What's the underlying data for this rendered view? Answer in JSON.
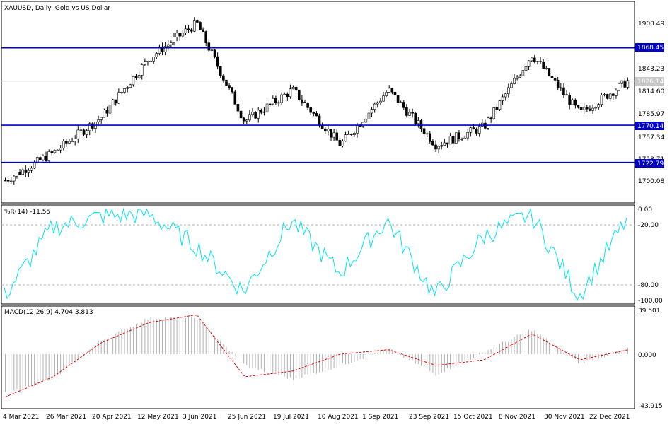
{
  "main_chart": {
    "title": "XAUUSD, Daily:  Gold vs US Dollar",
    "price_axis_ticks": [
      "1900.49",
      "1843.23",
      "1814.60",
      "1785.97",
      "1757.34",
      "1728.71",
      "1700.08"
    ],
    "current_price_label": "1826.14",
    "current_price": 1826.14,
    "levels": [
      {
        "label": "1868.45",
        "value": 1868.45
      },
      {
        "label": "1770.14",
        "value": 1770.14
      },
      {
        "label": "1722.79",
        "value": 1722.79
      }
    ]
  },
  "wpr_panel": {
    "title": "%R(14) -11.55",
    "axis_ticks": [
      "0.00",
      "-20.00",
      "-80.00",
      "-100.00"
    ]
  },
  "macd_panel": {
    "title": "MACD(12,26,9) 4.704 3.813",
    "axis_ticks": [
      "39.501",
      "0.000",
      "-43.915"
    ]
  },
  "date_axis": [
    "4 Mar 2021",
    "26 Mar 2021",
    "20 Apr 2021",
    "12 May 2021",
    "3 Jun 2021",
    "25 Jun 2021",
    "19 Jul 2021",
    "10 Aug 2021",
    "1 Sep 2021",
    "23 Sep 2021",
    "15 Oct 2021",
    "8 Nov 2021",
    "30 Nov 2021",
    "22 Dec 2021"
  ],
  "colors": {
    "candle": "#000000",
    "level_line": "#0000cc",
    "level_label_bg": "#0000cc",
    "wpr_line": "#00e5ee",
    "macd_hist": "#b0b0b0",
    "macd_signal": "#e00000"
  },
  "chart_data": [
    {
      "type": "candlestick",
      "title": "XAUUSD, Daily:  Gold vs US Dollar",
      "ylim": [
        1685,
        1922
      ],
      "x": [
        "4 Mar 2021",
        "26 Mar 2021",
        "20 Apr 2021",
        "12 May 2021",
        "3 Jun 2021",
        "25 Jun 2021",
        "19 Jul 2021",
        "10 Aug 2021",
        "1 Sep 2021",
        "23 Sep 2021",
        "15 Oct 2021",
        "8 Nov 2021",
        "30 Nov 2021",
        "22 Dec 2021"
      ],
      "approx_close": [
        1700,
        1735,
        1780,
        1855,
        1900,
        1775,
        1815,
        1745,
        1815,
        1745,
        1768,
        1860,
        1785,
        1826
      ],
      "horizontal_levels": [
        1868.45,
        1770.14,
        1722.79
      ],
      "last_price": 1826.14
    },
    {
      "type": "line",
      "title": "%R(14) -11.55",
      "ylim": [
        -100,
        0
      ],
      "x": [
        "4 Mar 2021",
        "26 Mar 2021",
        "20 Apr 2021",
        "12 May 2021",
        "3 Jun 2021",
        "25 Jun 2021",
        "19 Jul 2021",
        "10 Aug 2021",
        "1 Sep 2021",
        "23 Sep 2021",
        "15 Oct 2021",
        "8 Nov 2021",
        "30 Nov 2021",
        "22 Dec 2021"
      ],
      "values": [
        -95,
        -20,
        -8,
        -5,
        -40,
        -90,
        -12,
        -70,
        -12,
        -95,
        -30,
        -5,
        -95,
        -11.55
      ],
      "reference_lines": [
        -20,
        -80
      ]
    },
    {
      "type": "bar+line",
      "title": "MACD(12,26,9) 4.704 3.813",
      "ylim": [
        -43.915,
        39.501
      ],
      "x": [
        "4 Mar 2021",
        "26 Mar 2021",
        "20 Apr 2021",
        "12 May 2021",
        "3 Jun 2021",
        "25 Jun 2021",
        "19 Jul 2021",
        "10 Aug 2021",
        "1 Sep 2021",
        "23 Sep 2021",
        "15 Oct 2021",
        "8 Nov 2021",
        "30 Nov 2021",
        "22 Dec 2021"
      ],
      "series": [
        {
          "name": "MACD",
          "values": [
            -35,
            -22,
            12,
            32,
            32,
            -10,
            -22,
            -10,
            5,
            -18,
            2,
            22,
            -8,
            4.704
          ]
        },
        {
          "name": "Signal",
          "values": [
            -38,
            -20,
            10,
            28,
            35,
            -20,
            -15,
            0,
            4,
            -10,
            -5,
            18,
            -5,
            3.813
          ]
        }
      ]
    }
  ]
}
